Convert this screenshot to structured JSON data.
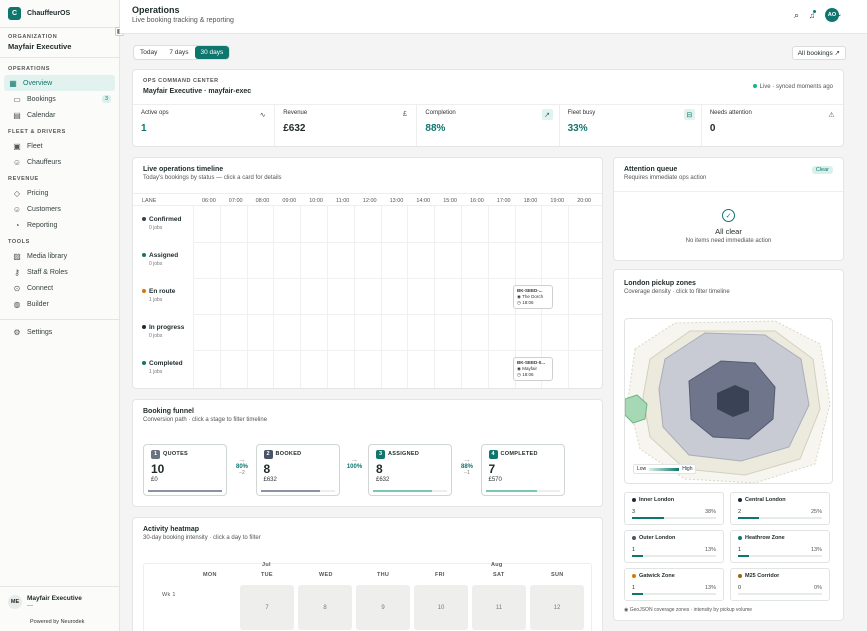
{
  "brand": {
    "logo": "C",
    "name": "ChauffeurOS"
  },
  "org": {
    "label": "ORGANIZATION",
    "name": "Mayfair Executive"
  },
  "sidebar": {
    "operations_label": "OPERATIONS",
    "overview": "Overview",
    "bookings": "Bookings",
    "bookings_badge": "3",
    "calendar": "Calendar",
    "fleet_label": "FLEET & DRIVERS",
    "fleet": "Fleet",
    "chauffeurs": "Chauffeurs",
    "revenue_label": "REVENUE",
    "pricing": "Pricing",
    "customers": "Customers",
    "reporting": "Reporting",
    "tools_label": "TOOLS",
    "media": "Media library",
    "staff": "Staff & Roles",
    "connect": "Connect",
    "builder": "Builder",
    "settings": "Settings",
    "user_initials": "ME",
    "user_name": "Mayfair Executive",
    "user_sub": "—",
    "powered": "Powered by Neurodek"
  },
  "header": {
    "title": "Operations",
    "subtitle": "Live booking tracking & reporting",
    "user_initials": "AO"
  },
  "range": {
    "today": "Today",
    "d7": "7 days",
    "d30": "30 days",
    "all_bookings": "All bookings ↗"
  },
  "command": {
    "label": "OPS COMMAND CENTER",
    "org": "Mayfair Executive · mayfair-exec",
    "status": "Live · synced moments ago"
  },
  "kpis": [
    {
      "label": "Active ops",
      "value": "1"
    },
    {
      "label": "Revenue",
      "value": "£632"
    },
    {
      "label": "Completion",
      "value": "88%"
    },
    {
      "label": "Fleet busy",
      "value": "33%"
    },
    {
      "label": "Needs attention",
      "value": "0"
    }
  ],
  "timeline": {
    "title": "Live operations timeline",
    "subtitle": "Today's bookings by status — click a card for details",
    "lane_header": "LANE",
    "hours": [
      "06:00",
      "07:00",
      "08:00",
      "09:00",
      "10:00",
      "11:00",
      "12:00",
      "13:00",
      "14:00",
      "15:00",
      "16:00",
      "17:00",
      "18:00",
      "19:00",
      "20:00"
    ],
    "lanes": [
      {
        "name": "Confirmed",
        "jobs": "0 jobs",
        "color": "#374151"
      },
      {
        "name": "Assigned",
        "jobs": "0 jobs",
        "color": "#0f766e"
      },
      {
        "name": "En route",
        "jobs": "1 jobs",
        "color": "#d97706"
      },
      {
        "name": "In progress",
        "jobs": "0 jobs",
        "color": "#1f2937"
      },
      {
        "name": "Completed",
        "jobs": "1 jobs",
        "color": "#0f766e"
      }
    ],
    "events": [
      {
        "id": "BK-SEED-...",
        "place": "The Dorch",
        "time": "18:06"
      },
      {
        "id": "BK-SEED-0...",
        "place": "Mayfair",
        "time": "18:06"
      }
    ]
  },
  "funnel": {
    "title": "Booking funnel",
    "subtitle": "Conversion path · click a stage to filter timeline",
    "stages": [
      {
        "n": "1",
        "label": "QUOTES",
        "value": "10",
        "amount": "£0",
        "color": "#6b7280",
        "fill": 1.0
      },
      {
        "n": "2",
        "label": "BOOKED",
        "value": "8",
        "amount": "£632",
        "color": "#475569",
        "fill": 0.8
      },
      {
        "n": "3",
        "label": "ASSIGNED",
        "value": "8",
        "amount": "£632",
        "color": "#0f766e",
        "fill": 0.8
      },
      {
        "n": "4",
        "label": "COMPLETED",
        "value": "7",
        "amount": "£570",
        "color": "#0f766e",
        "fill": 0.7
      }
    ],
    "conversions": [
      {
        "pct": "80%",
        "drop": "−2"
      },
      {
        "pct": "100%",
        "drop": ""
      },
      {
        "pct": "88%",
        "drop": "−1"
      }
    ]
  },
  "heatmap": {
    "title": "Activity heatmap",
    "subtitle": "30-day booking intensity · click a day to filter",
    "months": [
      "Jul",
      "Aug"
    ],
    "days": [
      "MON",
      "TUE",
      "WED",
      "THU",
      "FRI",
      "SAT",
      "SUN"
    ],
    "week": "Wk 1",
    "cells": [
      "7",
      "8",
      "9",
      "10",
      "11",
      "12"
    ]
  },
  "attention": {
    "title": "Attention queue",
    "subtitle": "Requires immediate ops action",
    "clear": "Clear",
    "all_clear": "All clear",
    "note": "No items need immediate action"
  },
  "zones": {
    "title": "London pickup zones",
    "subtitle": "Coverage density · click to filter timeline",
    "legend_low": "Low",
    "legend_high": "High",
    "items": [
      {
        "name": "Inner London",
        "count": "3",
        "pct": "38%",
        "fill": 0.38,
        "color": "#1f2937"
      },
      {
        "name": "Central London",
        "count": "2",
        "pct": "25%",
        "fill": 0.25,
        "color": "#1f2937"
      },
      {
        "name": "Outer London",
        "count": "1",
        "pct": "13%",
        "fill": 0.13,
        "color": "#475569"
      },
      {
        "name": "Heathrow Zone",
        "count": "1",
        "pct": "13%",
        "fill": 0.13,
        "color": "#0f766e"
      },
      {
        "name": "Gatwick Zone",
        "count": "1",
        "pct": "13%",
        "fill": 0.13,
        "color": "#d97706"
      },
      {
        "name": "M25 Corridor",
        "count": "0",
        "pct": "0%",
        "fill": 0,
        "color": "#a16207"
      }
    ],
    "footnote": "GeoJSON coverage zones · intensity by pickup volume"
  }
}
